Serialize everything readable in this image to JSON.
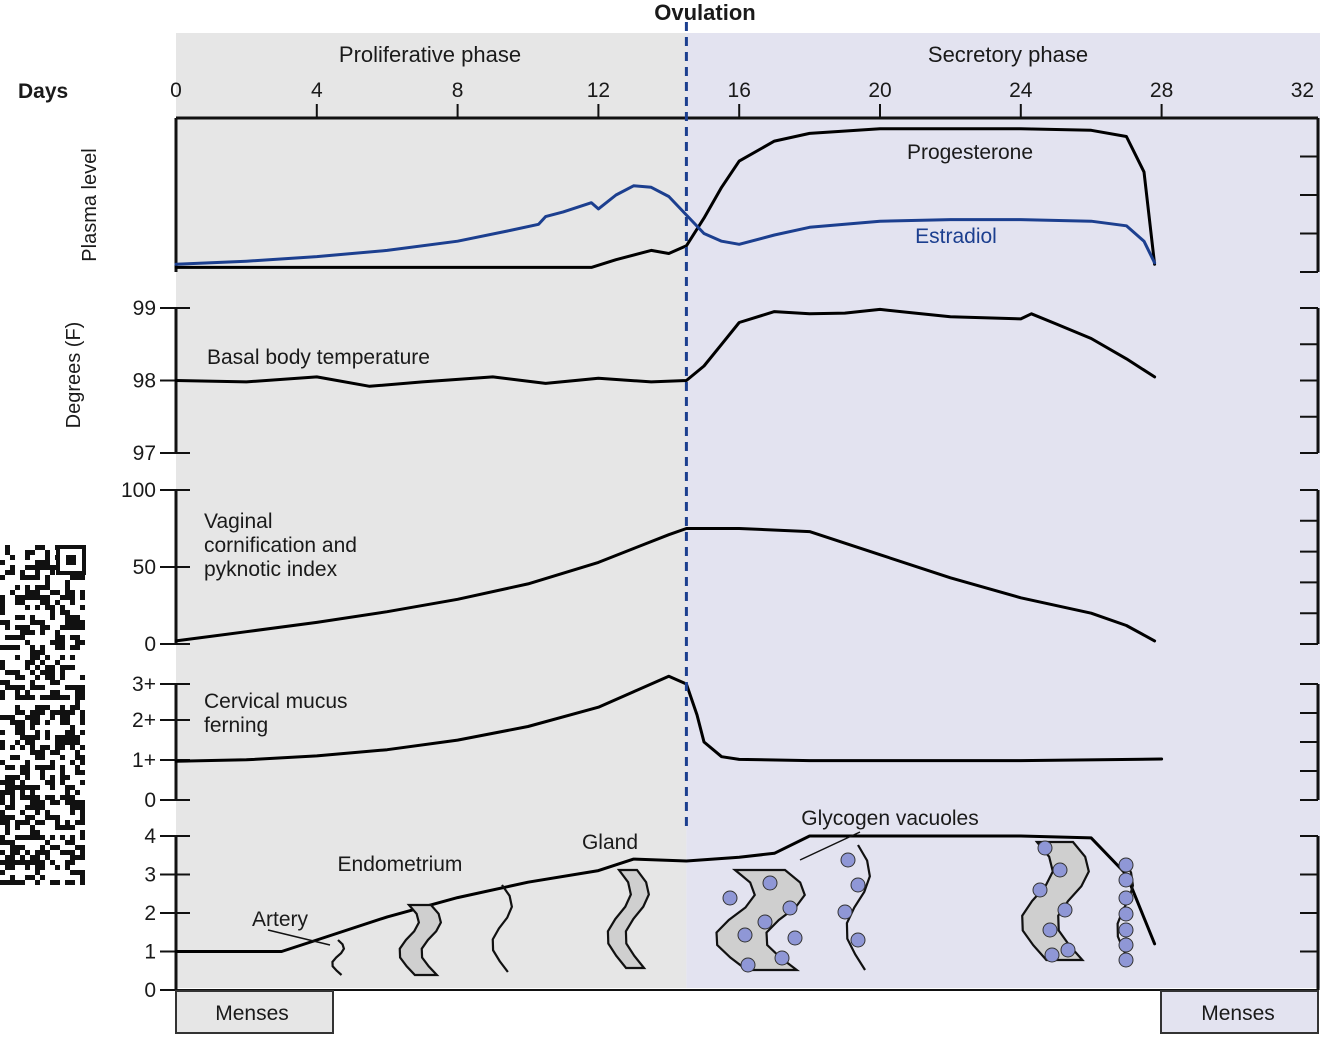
{
  "title": "Ovulation",
  "days_label": "Days",
  "phases": {
    "proliferative": "Proliferative phase",
    "secretory": "Secretory phase"
  },
  "menses_label": "Menses",
  "colors": {
    "proliferative_bg": "#e6e6e6",
    "secretory_bg": "#e3e3f0",
    "estradiol": "#1c3f8f",
    "ovulation_line": "#1c3f8f",
    "vacuole": "#8f97d6"
  },
  "chart_data": {
    "type": "line",
    "x_axis": {
      "label": "Days",
      "ticks": [
        0,
        4,
        8,
        12,
        16,
        20,
        24,
        28,
        32
      ],
      "range": [
        0,
        32
      ]
    },
    "ovulation_day": 14.5,
    "panels": [
      {
        "id": "plasma",
        "ylabel": "Plasma level",
        "yticks": [],
        "series": [
          {
            "name": "Progesterone",
            "color": "#000000",
            "x": [
              0,
              4,
              8,
              11.8,
              12.5,
              13.5,
              14,
              14.5,
              15,
              15.5,
              16,
              17,
              18,
              20,
              22,
              24,
              26,
              27,
              27.5,
              27.8
            ],
            "y": [
              0.03,
              0.03,
              0.03,
              0.03,
              0.08,
              0.14,
              0.12,
              0.17,
              0.35,
              0.55,
              0.72,
              0.85,
              0.9,
              0.93,
              0.93,
              0.93,
              0.92,
              0.88,
              0.65,
              0.05
            ]
          },
          {
            "name": "Estradiol",
            "color": "#1c3f8f",
            "x": [
              0,
              2,
              4,
              6,
              8,
              9.5,
              10.3,
              10.5,
              11,
              11.8,
              12,
              12.5,
              13,
              13.5,
              14,
              14.5,
              15,
              15.5,
              16,
              17,
              18,
              20,
              22,
              24,
              26,
              27,
              27.5,
              27.8
            ],
            "y": [
              0.05,
              0.07,
              0.1,
              0.14,
              0.2,
              0.27,
              0.31,
              0.36,
              0.39,
              0.45,
              0.41,
              0.5,
              0.56,
              0.55,
              0.49,
              0.37,
              0.25,
              0.2,
              0.18,
              0.24,
              0.29,
              0.33,
              0.34,
              0.34,
              0.33,
              0.3,
              0.2,
              0.06
            ]
          }
        ]
      },
      {
        "id": "temperature",
        "ylabel": "Degrees (F)",
        "yticks": [
          "97",
          "98",
          "99"
        ],
        "ylim": [
          97,
          99
        ],
        "series": [
          {
            "name": "Basal body temperature",
            "color": "#000000",
            "x": [
              0,
              2,
              4,
              5.5,
              7,
              9,
              10.5,
              12,
              13.5,
              14.5,
              15,
              15.5,
              16,
              17,
              18,
              19,
              20,
              21,
              22,
              24,
              24.3,
              25,
              26,
              27,
              27.8
            ],
            "y": [
              98,
              97.98,
              98.05,
              97.92,
              97.98,
              98.05,
              97.96,
              98.03,
              97.98,
              98,
              98.2,
              98.5,
              98.8,
              98.95,
              98.92,
              98.93,
              98.98,
              98.93,
              98.88,
              98.85,
              98.92,
              98.78,
              98.58,
              98.3,
              98.05
            ]
          }
        ]
      },
      {
        "id": "vaginal",
        "ylabel": "",
        "yticks": [
          "0",
          "50",
          "100"
        ],
        "ylim": [
          0,
          100
        ],
        "series": [
          {
            "name": "Vaginal cornification and pyknotic index",
            "color": "#000000",
            "x": [
              0,
              2,
              4,
              6,
              8,
              10,
              12,
              13,
              14,
              14.5,
              16,
              18,
              20,
              22,
              24,
              26,
              27,
              27.8
            ],
            "y": [
              2,
              8,
              14,
              21,
              29,
              39,
              53,
              62,
              71,
              75,
              75,
              73,
              58,
              43,
              30,
              20,
              12,
              2
            ]
          }
        ]
      },
      {
        "id": "mucus",
        "ylabel": "",
        "yticks": [
          "0",
          "1+",
          "2+",
          "3+"
        ],
        "ylim": [
          0,
          3
        ],
        "series": [
          {
            "name": "Cervical mucus ferning",
            "color": "#000000",
            "x": [
              0,
              2,
              4,
              6,
              8,
              10,
              12,
              13,
              14,
              14.5,
              14.8,
              15,
              15.5,
              16,
              18,
              20,
              24,
              28
            ],
            "y": [
              1,
              1.04,
              1.14,
              1.3,
              1.55,
              1.9,
              2.4,
              2.8,
              3.2,
              3,
              2.2,
              1.5,
              1.12,
              1.05,
              1.02,
              1.02,
              1.02,
              1.06
            ]
          }
        ]
      },
      {
        "id": "endometrium",
        "ylabel": "",
        "yticks": [
          "0",
          "1",
          "2",
          "3",
          "4"
        ],
        "ylim": [
          0,
          4
        ],
        "series": [
          {
            "name": "Endometrium",
            "color": "#000000",
            "x": [
              0,
              3,
              4,
              6,
              8,
              10,
              12,
              13,
              14.5,
              16,
              17,
              18,
              20,
              22,
              24,
              26,
              27,
              27.8
            ],
            "y": [
              1,
              1,
              1.3,
              1.9,
              2.4,
              2.8,
              3.1,
              3.4,
              3.35,
              3.45,
              3.55,
              4,
              4,
              4,
              4,
              3.95,
              3,
              1.2
            ]
          }
        ]
      }
    ],
    "annotations": [
      "Gland",
      "Artery",
      "Glycogen vacuoles",
      "Endometrium"
    ]
  }
}
